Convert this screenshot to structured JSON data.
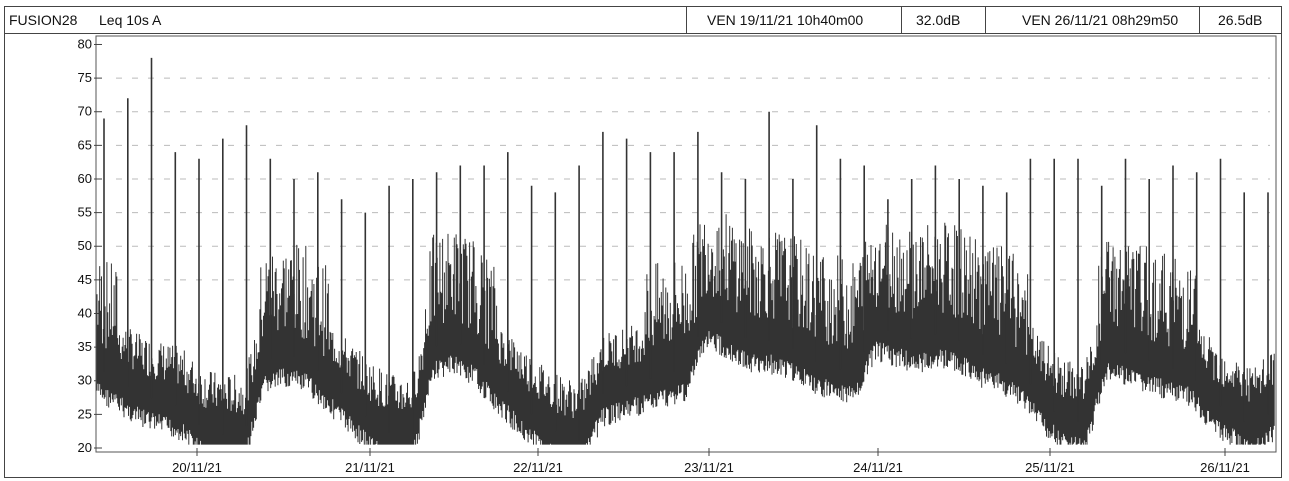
{
  "header": {
    "instrument": "FUSION28",
    "measure": "Leq 10s  A",
    "start_datetime": "VEN 19/11/21 10h40m00",
    "start_value": "32.0dB",
    "end_datetime": "VEN 26/11/21 08h29m50",
    "end_value": "26.5dB"
  },
  "chart_data": {
    "type": "line",
    "title": "",
    "xlabel": "",
    "ylabel": "",
    "ylim": [
      20,
      80
    ],
    "xlim": [
      "2021-11-19 10:40",
      "2021-11-26 08:29"
    ],
    "y_ticks": [
      "80",
      "75",
      "70",
      "65",
      "60",
      "55",
      "50",
      "45",
      "40",
      "35",
      "30",
      "25",
      "20"
    ],
    "x_tick_labels": [
      "20/11/21",
      "21/11/21",
      "22/11/21",
      "23/11/21",
      "24/11/21",
      "25/11/21",
      "26/11/21"
    ],
    "grid": false,
    "series": [
      {
        "color": "#333333",
        "x": [
          "19/11 10h",
          "19/11 13h",
          "19/11 16h",
          "19/11 19h",
          "19/11 22h",
          "20/11 01h",
          "20/11 04h",
          "20/11 07h",
          "20/11 10h",
          "20/11 13h",
          "20/11 16h",
          "20/11 19h",
          "20/11 22h",
          "21/11 01h",
          "21/11 04h",
          "21/11 07h",
          "21/11 10h",
          "21/11 13h",
          "21/11 16h",
          "21/11 19h",
          "21/11 22h",
          "22/11 01h",
          "22/11 04h",
          "22/11 07h",
          "22/11 10h",
          "22/11 13h",
          "22/11 16h",
          "22/11 19h",
          "22/11 22h",
          "23/11 01h",
          "23/11 04h",
          "23/11 07h",
          "23/11 10h",
          "23/11 13h",
          "23/11 16h",
          "23/11 19h",
          "23/11 22h",
          "24/11 01h",
          "24/11 04h",
          "24/11 07h",
          "24/11 10h",
          "24/11 13h",
          "24/11 16h",
          "24/11 19h",
          "24/11 22h",
          "25/11 01h",
          "25/11 04h",
          "25/11 07h",
          "25/11 10h",
          "25/11 13h",
          "25/11 16h",
          "25/11 19h",
          "25/11 22h",
          "26/11 01h",
          "26/11 04h",
          "26/11 07h",
          "26/11 08h"
        ],
        "values": [
          32,
          30,
          28,
          27,
          26,
          23,
          22,
          22,
          33,
          34,
          33,
          30,
          27,
          24,
          22,
          22,
          35,
          36,
          34,
          30,
          27,
          24,
          22,
          21,
          28,
          29,
          30,
          31,
          32,
          40,
          38,
          36,
          36,
          35,
          33,
          32,
          31,
          38,
          37,
          36,
          37,
          36,
          34,
          33,
          31,
          27,
          24,
          24,
          35,
          34,
          33,
          32,
          31,
          27,
          25,
          23,
          26
        ]
      }
    ],
    "peaks": [
      69,
      72,
      78,
      64,
      63,
      66,
      68,
      63,
      60,
      61,
      57,
      55,
      59,
      60,
      61,
      62,
      62,
      64,
      59,
      58,
      62,
      67,
      66,
      64,
      64,
      67,
      61,
      60,
      70,
      60,
      68,
      63,
      62,
      57,
      60,
      62,
      60,
      59,
      58,
      63,
      63,
      63,
      59,
      63,
      60,
      62,
      61,
      63,
      58,
      58
    ]
  }
}
